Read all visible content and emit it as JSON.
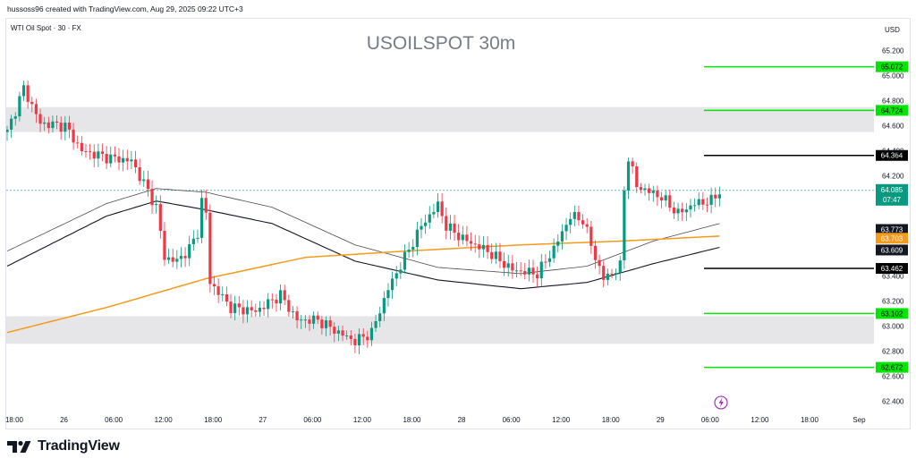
{
  "credit": "hussoss96 created with TradingView.com, Aug 29, 2025 09:22 UTC+3",
  "brand": {
    "name": "TradingView",
    "logo_icon": "tradingview-logo-icon",
    "alert_icon": "lightning-icon"
  },
  "colors": {
    "up": "#089981",
    "down": "#f23645",
    "ma_long": "#f59a1b",
    "envelope": "#131722",
    "green_level": "#00e600",
    "black_level": "#000000",
    "zone": "#e6e6e9",
    "last_price_bg": "#089981",
    "alert": "#9c27b0"
  },
  "chart_data": {
    "type": "candlestick",
    "title": "USOILSPOT 30m",
    "symbol": "WTI Oil Spot · 30 · FX",
    "currency": "USD",
    "ylim": [
      62.4,
      65.3
    ],
    "y_ticks": [
      "65.200",
      "65.000",
      "64.800",
      "64.600",
      "64.400",
      "64.200",
      "63.400",
      "63.200",
      "63.000",
      "62.800",
      "62.600",
      "62.400"
    ],
    "x_ticks": [
      {
        "t": 0,
        "label": "18:00"
      },
      {
        "t": 12,
        "label": "26"
      },
      {
        "t": 24,
        "label": "06:00"
      },
      {
        "t": 36,
        "label": "12:00"
      },
      {
        "t": 48,
        "label": "18:00"
      },
      {
        "t": 60,
        "label": "27"
      },
      {
        "t": 72,
        "label": "06:00"
      },
      {
        "t": 84,
        "label": "12:00"
      },
      {
        "t": 96,
        "label": "18:00"
      },
      {
        "t": 108,
        "label": "28"
      },
      {
        "t": 120,
        "label": "06:00"
      },
      {
        "t": 132,
        "label": "12:00"
      },
      {
        "t": 144,
        "label": "18:00"
      },
      {
        "t": 156,
        "label": "29"
      },
      {
        "t": 168,
        "label": "06:00"
      },
      {
        "t": 180,
        "label": "12:00"
      },
      {
        "t": 192,
        "label": "18:00"
      },
      {
        "t": 204,
        "label": "Sep"
      }
    ],
    "zones": [
      {
        "from": 64.55,
        "to": 64.75
      },
      {
        "from": 62.86,
        "to": 63.08
      }
    ],
    "levels": [
      {
        "value": "65.072",
        "color": "green"
      },
      {
        "value": "64.724",
        "color": "green"
      },
      {
        "value": "64.364",
        "color": "black"
      },
      {
        "value": "63.462",
        "color": "black"
      },
      {
        "value": "63.102",
        "color": "green"
      },
      {
        "value": "62.672",
        "color": "green"
      }
    ],
    "price_labels": [
      {
        "value": "63.773",
        "bg": "#131722"
      },
      {
        "value": "63.703",
        "bg": "#f59a1b"
      },
      {
        "value": "63.609",
        "bg": "#131722"
      }
    ],
    "last_price": {
      "value": "64.085",
      "countdown": "07:47"
    },
    "anchors": [
      [
        0,
        64.55
      ],
      [
        4,
        64.9
      ],
      [
        8,
        64.62
      ],
      [
        14,
        64.6
      ],
      [
        18,
        64.4
      ],
      [
        24,
        64.35
      ],
      [
        30,
        64.32
      ],
      [
        34,
        64.08
      ],
      [
        36,
        63.95
      ],
      [
        38,
        63.55
      ],
      [
        41,
        63.52
      ],
      [
        44,
        63.62
      ],
      [
        46,
        63.75
      ],
      [
        47,
        64.0
      ],
      [
        48,
        63.9
      ],
      [
        49,
        63.35
      ],
      [
        54,
        63.15
      ],
      [
        60,
        63.12
      ],
      [
        66,
        63.25
      ],
      [
        70,
        63.05
      ],
      [
        75,
        63.05
      ],
      [
        80,
        62.95
      ],
      [
        84,
        62.88
      ],
      [
        88,
        62.95
      ],
      [
        92,
        63.3
      ],
      [
        96,
        63.55
      ],
      [
        100,
        63.8
      ],
      [
        104,
        63.97
      ],
      [
        106,
        63.8
      ],
      [
        110,
        63.7
      ],
      [
        116,
        63.6
      ],
      [
        122,
        63.45
      ],
      [
        128,
        63.42
      ],
      [
        132,
        63.62
      ],
      [
        136,
        63.88
      ],
      [
        139,
        63.85
      ],
      [
        142,
        63.55
      ],
      [
        144,
        63.38
      ],
      [
        147,
        63.45
      ],
      [
        148,
        63.48
      ],
      [
        149,
        64.1
      ],
      [
        150,
        64.35
      ],
      [
        152,
        64.12
      ],
      [
        158,
        64.03
      ],
      [
        162,
        63.9
      ],
      [
        166,
        63.98
      ],
      [
        170,
        64.0
      ],
      [
        172,
        64.08
      ]
    ],
    "envelope_upper": [
      [
        0,
        63.6
      ],
      [
        24,
        63.98
      ],
      [
        36,
        64.1
      ],
      [
        48,
        64.07
      ],
      [
        64,
        63.95
      ],
      [
        84,
        63.65
      ],
      [
        104,
        63.47
      ],
      [
        124,
        63.42
      ],
      [
        140,
        63.48
      ],
      [
        156,
        63.68
      ],
      [
        172,
        63.82
      ]
    ],
    "envelope_lower": [
      [
        0,
        63.48
      ],
      [
        24,
        63.88
      ],
      [
        36,
        64.0
      ],
      [
        48,
        63.93
      ],
      [
        64,
        63.82
      ],
      [
        84,
        63.52
      ],
      [
        104,
        63.37
      ],
      [
        124,
        63.3
      ],
      [
        140,
        63.35
      ],
      [
        156,
        63.5
      ],
      [
        172,
        63.63
      ]
    ],
    "ma_long": [
      [
        0,
        62.95
      ],
      [
        24,
        63.15
      ],
      [
        48,
        63.38
      ],
      [
        72,
        63.55
      ],
      [
        96,
        63.6
      ],
      [
        124,
        63.65
      ],
      [
        148,
        63.68
      ],
      [
        172,
        63.72
      ]
    ]
  }
}
